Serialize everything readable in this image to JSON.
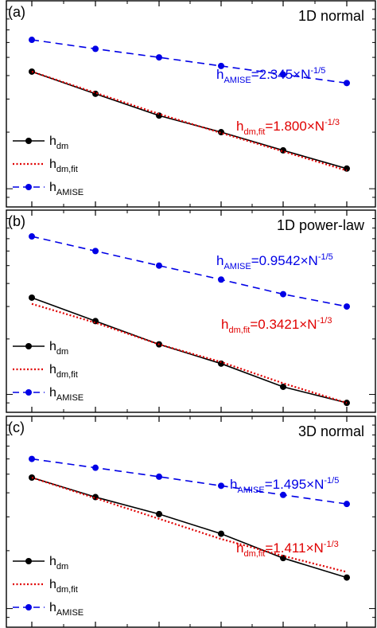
{
  "figure": {
    "colors": {
      "hdm": "#000000",
      "hfit": "#e00000",
      "hamise": "#0000e6",
      "axes": "#000000"
    }
  },
  "chart_data": [
    {
      "type": "line",
      "panel_label": "(a)",
      "title": "1D normal",
      "x_scale": "log",
      "y_scale": "log",
      "x": [
        1,
        2,
        3,
        4,
        5,
        6
      ],
      "series": [
        {
          "name_main": "h",
          "name_sub": "dm",
          "style": "solid-with-markers",
          "color": "#000000",
          "values": [
            0.42,
            0.32,
            0.245,
            0.2,
            0.16,
            0.128
          ]
        },
        {
          "name_main": "h",
          "name_sub": "dm,fit",
          "style": "dotted",
          "color": "#e00000",
          "values": [
            0.42,
            0.324,
            0.25,
            0.198,
            0.158,
            0.125
          ]
        },
        {
          "name_main": "h",
          "name_sub": "AMISE",
          "style": "dashed-with-markers",
          "color": "#0000e6",
          "values": [
            0.62,
            0.555,
            0.5,
            0.45,
            0.405,
            0.365
          ]
        }
      ],
      "annotations": {
        "amise": {
          "main": "h",
          "sub": "AMISE",
          "text": "=2.345×N",
          "sup": "-1/5"
        },
        "fit": {
          "main": "h",
          "sub": "dm,fit",
          "text": "=1.800×N",
          "sup": "-1/3"
        }
      },
      "legend": "bottom-left",
      "grid": false
    },
    {
      "type": "line",
      "panel_label": "(b)",
      "title": "1D power-law",
      "x_scale": "log",
      "y_scale": "log",
      "x": [
        1,
        2,
        3,
        4,
        5,
        6
      ],
      "series": [
        {
          "name_main": "h",
          "name_sub": "dm",
          "style": "solid-with-markers",
          "color": "#000000",
          "values": [
            0.335,
            0.25,
            0.187,
            0.147,
            0.11,
            0.09
          ]
        },
        {
          "name_main": "h",
          "name_sub": "dm,fit",
          "style": "dotted",
          "color": "#e00000",
          "values": [
            0.31,
            0.245,
            0.187,
            0.15,
            0.115,
            0.09
          ]
        },
        {
          "name_main": "h",
          "name_sub": "AMISE",
          "style": "dashed-with-markers",
          "color": "#0000e6",
          "values": [
            0.72,
            0.6,
            0.5,
            0.42,
            0.35,
            0.3
          ]
        }
      ],
      "annotations": {
        "amise": {
          "main": "h",
          "sub": "AMISE",
          "text": "=0.9542×N",
          "sup": "-1/5"
        },
        "fit": {
          "main": "h",
          "sub": "dm,fit",
          "text": "=0.3421×N",
          "sup": "-1/3"
        }
      },
      "legend": "bottom-left",
      "grid": false
    },
    {
      "type": "line",
      "panel_label": "(c)",
      "title": "3D normal",
      "x_scale": "log",
      "y_scale": "log",
      "x": [
        1,
        2,
        3,
        4,
        5,
        6
      ],
      "series": [
        {
          "name_main": "h",
          "name_sub": "dm",
          "style": "solid-with-markers",
          "color": "#000000",
          "values": [
            0.48,
            0.38,
            0.31,
            0.245,
            0.183,
            0.145
          ]
        },
        {
          "name_main": "h",
          "name_sub": "dm,fit",
          "style": "dotted",
          "color": "#e00000",
          "values": [
            0.48,
            0.375,
            0.293,
            0.23,
            0.188,
            0.155
          ]
        },
        {
          "name_main": "h",
          "name_sub": "AMISE",
          "style": "dashed-with-markers",
          "color": "#0000e6",
          "values": [
            0.6,
            0.54,
            0.485,
            0.435,
            0.39,
            0.35
          ]
        }
      ],
      "annotations": {
        "amise": {
          "main": "h",
          "sub": "AMISE",
          "text": "=1.495×N",
          "sup": "-1/5"
        },
        "fit": {
          "main": "h",
          "sub": "dm,fit",
          "text": "=1.411×N",
          "sup": "-1/3"
        }
      },
      "legend": "bottom-left",
      "grid": false
    }
  ]
}
